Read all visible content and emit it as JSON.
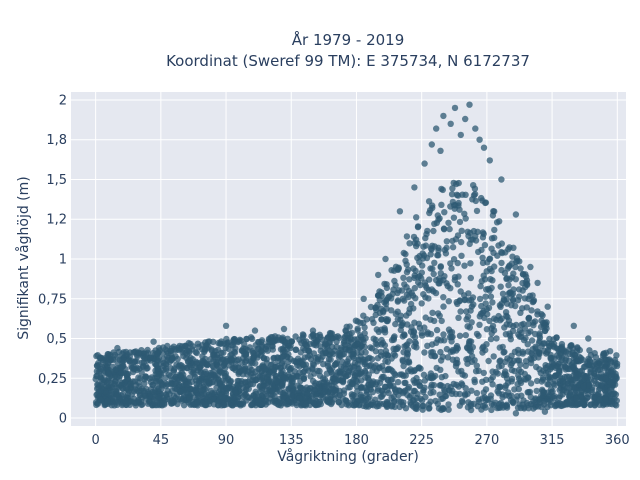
{
  "chart_data": {
    "type": "scatter",
    "title_lines": [
      "År 1979 - 2019",
      "Koordinat (Sweref 99 TM): E 375734, N 6172737"
    ],
    "xlabel": "Vågriktning (grader)",
    "ylabel": "Signifikant våghöjd (m)",
    "xlim": [
      -17,
      366
    ],
    "ylim": [
      -0.05,
      2.05
    ],
    "x_ticks": [
      {
        "value": 0,
        "label": "0"
      },
      {
        "value": 45,
        "label": "45"
      },
      {
        "value": 90,
        "label": "90"
      },
      {
        "value": 135,
        "label": "135"
      },
      {
        "value": 180,
        "label": "180"
      },
      {
        "value": 225,
        "label": "225"
      },
      {
        "value": 270,
        "label": "270"
      },
      {
        "value": 315,
        "label": "315"
      },
      {
        "value": 360,
        "label": "360"
      }
    ],
    "y_ticks": [
      {
        "value": 0,
        "label": "0"
      },
      {
        "value": 0.25,
        "label": "0,25"
      },
      {
        "value": 0.5,
        "label": "0,5"
      },
      {
        "value": 0.75,
        "label": "0,75"
      },
      {
        "value": 1.0,
        "label": "1"
      },
      {
        "value": 1.25,
        "label": "1,2"
      },
      {
        "value": 1.5,
        "label": "1,5"
      },
      {
        "value": 1.75,
        "label": "1,8"
      },
      {
        "value": 2.0,
        "label": "2"
      }
    ],
    "grid": true,
    "marker_color": "#2e5a73",
    "plot_background": "#e5e8f0",
    "envelope": {
      "x": [
        0,
        20,
        45,
        90,
        135,
        170,
        190,
        205,
        215,
        225,
        235,
        245,
        255,
        265,
        275,
        285,
        295,
        305,
        315,
        330,
        345,
        360
      ],
      "upper": [
        0.4,
        0.42,
        0.45,
        0.5,
        0.52,
        0.55,
        0.7,
        0.95,
        1.15,
        1.35,
        1.45,
        1.5,
        1.5,
        1.45,
        1.35,
        1.15,
        0.95,
        0.7,
        0.55,
        0.45,
        0.42,
        0.4
      ],
      "lower": [
        0.08,
        0.08,
        0.08,
        0.08,
        0.08,
        0.08,
        0.07,
        0.07,
        0.06,
        0.05,
        0.05,
        0.05,
        0.05,
        0.05,
        0.05,
        0.06,
        0.06,
        0.06,
        0.07,
        0.08,
        0.08,
        0.08
      ]
    },
    "outliers": [
      {
        "x": 235,
        "y": 1.82
      },
      {
        "x": 240,
        "y": 1.9
      },
      {
        "x": 245,
        "y": 1.85
      },
      {
        "x": 248,
        "y": 1.95
      },
      {
        "x": 252,
        "y": 1.78
      },
      {
        "x": 255,
        "y": 1.88
      },
      {
        "x": 258,
        "y": 1.97
      },
      {
        "x": 262,
        "y": 1.82
      },
      {
        "x": 265,
        "y": 1.75
      },
      {
        "x": 232,
        "y": 1.72
      },
      {
        "x": 268,
        "y": 1.7
      },
      {
        "x": 238,
        "y": 1.68
      },
      {
        "x": 227,
        "y": 1.6
      },
      {
        "x": 272,
        "y": 1.62
      },
      {
        "x": 220,
        "y": 1.45
      },
      {
        "x": 280,
        "y": 1.5
      },
      {
        "x": 210,
        "y": 1.3
      },
      {
        "x": 290,
        "y": 1.28
      },
      {
        "x": 200,
        "y": 1.0
      },
      {
        "x": 300,
        "y": 0.95
      },
      {
        "x": 195,
        "y": 0.9
      },
      {
        "x": 305,
        "y": 0.85
      },
      {
        "x": 185,
        "y": 0.75
      },
      {
        "x": 312,
        "y": 0.7
      },
      {
        "x": 90,
        "y": 0.58
      },
      {
        "x": 110,
        "y": 0.55
      },
      {
        "x": 130,
        "y": 0.56
      },
      {
        "x": 150,
        "y": 0.55
      },
      {
        "x": 40,
        "y": 0.48
      },
      {
        "x": 15,
        "y": 0.44
      },
      {
        "x": 330,
        "y": 0.58
      },
      {
        "x": 340,
        "y": 0.5
      },
      {
        "x": 355,
        "y": 0.42
      },
      {
        "x": 270,
        "y": 0.12
      },
      {
        "x": 290,
        "y": 0.03
      },
      {
        "x": 310,
        "y": 0.04
      }
    ],
    "point_count": 3200
  }
}
